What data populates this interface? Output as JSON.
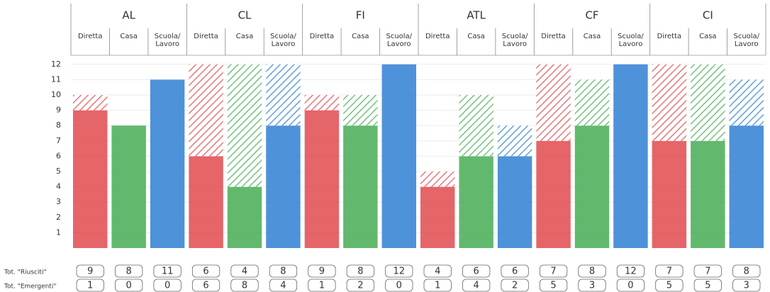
{
  "chart_data": {
    "type": "stacked-bar",
    "groups": [
      "AL",
      "CL",
      "FI",
      "ATL",
      "CF",
      "CI"
    ],
    "categories": [
      "Diretta",
      "Casa",
      "Scuola/\nLavoro",
      "Diretta",
      "Casa",
      "Scuola/\nLavoro",
      "Diretta",
      "Casa",
      "Scuola/\nLavoro",
      "Diretta",
      "Casa",
      "Scuola/\nLavoro",
      "Diretta",
      "Casa",
      "Scuola/\nLavoro",
      "Diretta",
      "Casa",
      "Scuola/\nLavoro"
    ],
    "category_colors": [
      "#e04a4f",
      "#46ad55",
      "#2f7fd3"
    ],
    "series": [
      {
        "name": "Tot. \"Riusciti\"",
        "values": [
          9,
          8,
          11,
          6,
          4,
          8,
          9,
          8,
          12,
          4,
          6,
          6,
          7,
          8,
          12,
          7,
          7,
          8
        ]
      },
      {
        "name": "Tot. \"Emergenti\"",
        "values": [
          1,
          0,
          0,
          6,
          8,
          4,
          1,
          2,
          0,
          1,
          4,
          2,
          5,
          3,
          0,
          5,
          5,
          3
        ]
      }
    ],
    "ylim": [
      0,
      12.5
    ],
    "yticks": [
      1,
      2,
      3,
      4,
      5,
      6,
      7,
      8,
      9,
      10,
      11,
      12
    ],
    "grid": true
  }
}
